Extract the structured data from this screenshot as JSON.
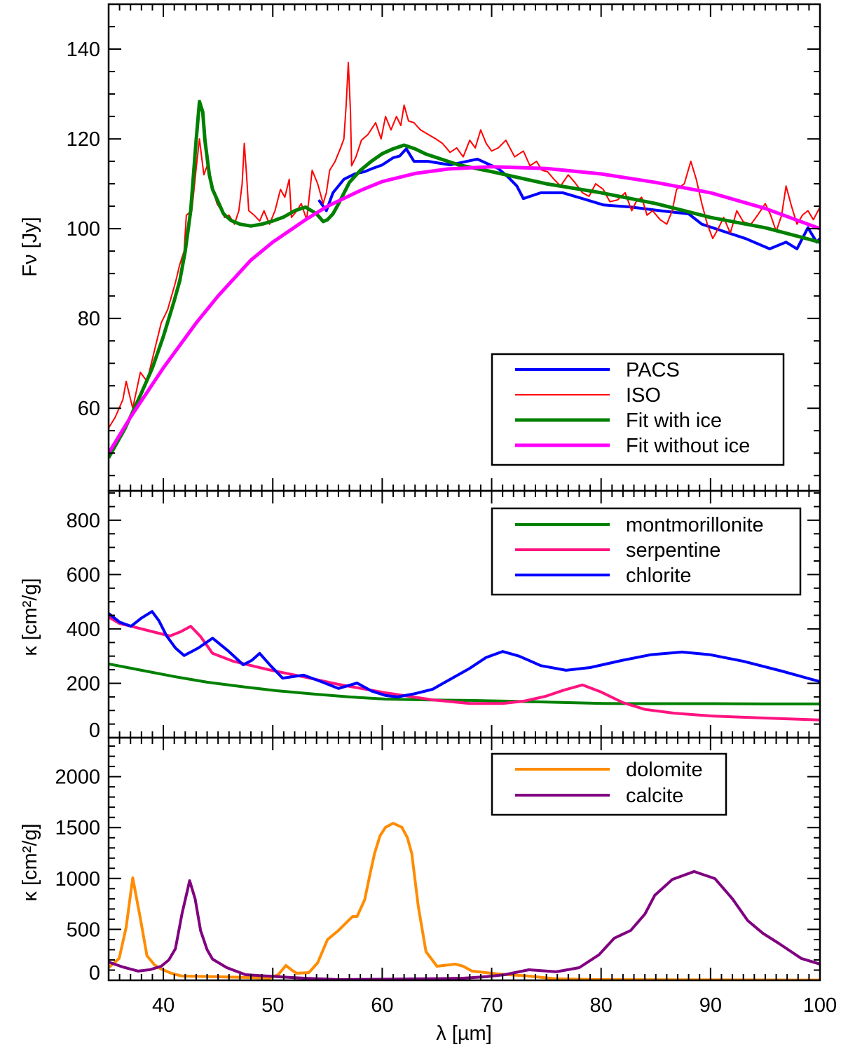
{
  "chart_data": [
    {
      "type": "line",
      "panel": "top",
      "title": "",
      "xlabel": "",
      "ylabel": "Fν [Jy]",
      "xlim": [
        35,
        100
      ],
      "ylim": [
        41.6,
        150
      ],
      "yticks": [
        60,
        80,
        100,
        120,
        140
      ],
      "ytick_labels": [
        "60",
        "80",
        "100",
        "120",
        "140"
      ],
      "yminor_step": 5,
      "grid": false,
      "legend_position": "bottom-right",
      "series": [
        {
          "name": "PACS",
          "color": "#0000ff",
          "width": 4,
          "x": [
            54.2,
            54.9,
            55.5,
            56.5,
            57.5,
            58.4,
            59.2,
            60,
            61,
            61.6,
            62.2,
            62.9,
            64.2,
            66.2,
            68.7,
            70.6,
            71.5,
            72.3,
            72.9,
            74.5,
            76.5,
            78.3,
            80.2,
            82.8,
            85.4,
            88,
            89.2,
            91.2,
            93.2,
            95.4,
            96.9,
            97.9,
            98.9,
            99.7,
            100
          ],
          "y": [
            106.4,
            104,
            108,
            111,
            112.2,
            112.7,
            113.5,
            114.2,
            115.8,
            116.2,
            117.8,
            115,
            115,
            114.2,
            115.5,
            113.4,
            111.5,
            109.5,
            106.7,
            108,
            108,
            106.7,
            105.3,
            104.8,
            104,
            103.3,
            101,
            99.4,
            97.8,
            95.5,
            97,
            95.5,
            100.2,
            97,
            97.8
          ]
        },
        {
          "name": "ISO",
          "color": "#ff0000",
          "width": 2,
          "x": [
            35,
            35.6,
            36.3,
            36.6,
            37.2,
            37.9,
            38.5,
            39.2,
            39.8,
            40.4,
            41.1,
            41.5,
            41.9,
            42.1,
            42.6,
            43,
            43.3,
            43.5,
            43.7,
            44,
            44.3,
            44.6,
            44.9,
            45.3,
            45.6,
            46,
            46.5,
            46.9,
            47.2,
            47.4,
            47.6,
            47.8,
            48.3,
            48.8,
            49.2,
            49.7,
            50.2,
            50.7,
            51.1,
            51.5,
            51.7,
            52.2,
            52.6,
            53.1,
            53.6,
            54.1,
            54.6,
            54.9,
            55.2,
            55.7,
            56.2,
            56.5,
            56.7,
            56.9,
            57.1,
            57.2,
            57.6,
            58.1,
            58.7,
            59.4,
            59.9,
            60.3,
            60.8,
            61.3,
            61.7,
            62,
            62.4,
            62.9,
            63.5,
            64.2,
            64.9,
            65.5,
            66.2,
            66.8,
            67.4,
            68,
            68.5,
            69,
            69.5,
            70,
            70.6,
            71.3,
            72.1,
            72.9,
            73.5,
            74.1,
            74.6,
            75.1,
            75.7,
            76.3,
            77,
            77.6,
            78.3,
            78.9,
            79.5,
            80.2,
            80.8,
            81.5,
            82.2,
            82.8,
            83.2,
            83.7,
            84.2,
            84.7,
            85.4,
            86,
            86.5,
            86.9,
            87.6,
            88.2,
            88.7,
            89.2,
            89.7,
            90.2,
            90.7,
            91.2,
            91.8,
            92.4,
            93,
            93.7,
            94.3,
            95,
            95.5,
            96,
            96.5,
            96.9,
            97.4,
            97.9,
            98.4,
            98.9,
            99.4,
            100
          ],
          "y": [
            55.6,
            58,
            61.9,
            66,
            60,
            68,
            66,
            73,
            79,
            82,
            88,
            92,
            95,
            103,
            104,
            113.4,
            120,
            116,
            112,
            114,
            110,
            108,
            105.6,
            104,
            102.5,
            103,
            101,
            104,
            110,
            119,
            112,
            104,
            103,
            101.7,
            104,
            101,
            104,
            108.75,
            107,
            111,
            102.5,
            104,
            105.6,
            102,
            113,
            110,
            105.6,
            108,
            113,
            115,
            118,
            120,
            127.5,
            137,
            126,
            114,
            116,
            119.7,
            121,
            123.6,
            120,
            125,
            122,
            125,
            123,
            127.5,
            124,
            123.6,
            122,
            121,
            120,
            119,
            117,
            118,
            116,
            119.7,
            118,
            122,
            119,
            117.3,
            118,
            119.7,
            116,
            117.3,
            114,
            115,
            113,
            112.7,
            111,
            109.5,
            112,
            110.3,
            108,
            107.2,
            110,
            108.75,
            106,
            106.4,
            108,
            104,
            106,
            107,
            103,
            104,
            102,
            101,
            104,
            108.75,
            110,
            115,
            111,
            105.6,
            101,
            97.8,
            100,
            102.5,
            99,
            104,
            101.5,
            101,
            103,
            105.6,
            103,
            99.4,
            103,
            109.5,
            105,
            101,
            103,
            104,
            102,
            104.8
          ]
        },
        {
          "name": "Fit with ice",
          "color": "#008000",
          "width": 5,
          "x": [
            35,
            36.5,
            38,
            39,
            40,
            41,
            41.5,
            42,
            42.5,
            43,
            43.3,
            43.6,
            43.8,
            44.2,
            44.5,
            45,
            45.5,
            46.2,
            47,
            48,
            49,
            50,
            51,
            52,
            53,
            54,
            54.6,
            55,
            55.5,
            56,
            57,
            58,
            59,
            60,
            61,
            62,
            63,
            64,
            65.5,
            67,
            70,
            75,
            80,
            85,
            90,
            95,
            100
          ],
          "y": [
            49,
            55.5,
            63.4,
            69,
            76,
            84,
            88.4,
            95,
            104,
            119.7,
            128.3,
            126,
            119.7,
            112,
            108.75,
            106,
            103.3,
            101.8,
            101,
            100.6,
            101,
            101.7,
            102.6,
            104,
            104.8,
            103.3,
            101.6,
            102,
            103.3,
            105.5,
            110.3,
            113,
            115,
            116.7,
            117.8,
            118.6,
            117.8,
            116.6,
            115.4,
            114.2,
            112.7,
            110,
            108,
            105.6,
            102.5,
            100.2,
            97
          ]
        },
        {
          "name": "Fit without ice",
          "color": "#ff00ff",
          "width": 5,
          "x": [
            35,
            37,
            40,
            43,
            45,
            48,
            50,
            53,
            55,
            58,
            60,
            63,
            66,
            70,
            75,
            80,
            85,
            90,
            95,
            100
          ],
          "y": [
            50,
            58,
            69,
            79,
            85,
            93,
            97,
            102,
            105,
            108.5,
            110.5,
            112.3,
            113.3,
            113.8,
            113.4,
            112.2,
            110.3,
            108,
            104.5,
            100
          ]
        }
      ]
    },
    {
      "type": "line",
      "panel": "middle",
      "title": "",
      "xlabel": "",
      "ylabel": "κ [cm²/g]",
      "xlim": [
        35,
        100
      ],
      "ylim": [
        0,
        908
      ],
      "yticks": [
        0,
        200,
        400,
        600,
        800
      ],
      "ytick_labels": [
        "0",
        "200",
        "400",
        "600",
        "800"
      ],
      "yminor_step": 50,
      "grid": false,
      "legend_position": "top-right",
      "series": [
        {
          "name": "montmorillonite",
          "color": "#008000",
          "width": 4,
          "x": [
            35,
            38,
            41.1,
            44,
            47.5,
            50.5,
            53.9,
            57,
            60.3,
            64,
            68,
            72,
            76,
            80.2,
            85,
            90,
            95,
            100
          ],
          "y": [
            271,
            248,
            224,
            204,
            186,
            172,
            160,
            150,
            142,
            139,
            137,
            134,
            130,
            126,
            125,
            125,
            124,
            124
          ]
        },
        {
          "name": "serpentine",
          "color": "#ff1480",
          "width": 4,
          "x": [
            35,
            36,
            37.05,
            38.8,
            40.6,
            41.6,
            42.5,
            43.4,
            44.5,
            46.4,
            49.6,
            52.8,
            56,
            60.3,
            64.6,
            68,
            71,
            73,
            74.9,
            76.6,
            78.3,
            80,
            82,
            84,
            86.7,
            90,
            93,
            96.5,
            100
          ],
          "y": [
            444,
            420,
            410,
            392,
            374,
            390,
            410,
            372,
            310,
            281,
            250,
            224,
            196,
            165,
            139,
            126,
            126,
            135,
            152,
            175,
            194,
            168,
            129,
            104,
            90,
            80,
            75,
            70,
            65
          ]
        },
        {
          "name": "chlorite",
          "color": "#0000ff",
          "width": 4,
          "x": [
            35,
            36,
            37.05,
            38,
            38.97,
            39.6,
            40.3,
            41.1,
            41.9,
            43.2,
            44.5,
            45.9,
            47.3,
            48.1,
            48.8,
            49.8,
            50.9,
            52.8,
            54.5,
            56,
            57.7,
            59,
            60.3,
            61.4,
            63,
            64.6,
            66,
            68,
            69.5,
            71,
            72.5,
            74.5,
            76.8,
            79,
            82,
            84.5,
            87.4,
            90,
            93,
            96.5,
            100
          ],
          "y": [
            457,
            425,
            410,
            440,
            464,
            430,
            374,
            330,
            302,
            330,
            366,
            320,
            268,
            285,
            310,
            265,
            219,
            230,
            205,
            181,
            201,
            172,
            155,
            150,
            162,
            178,
            210,
            255,
            295,
            317,
            300,
            265,
            248,
            258,
            285,
            305,
            315,
            305,
            281,
            245,
            206
          ]
        }
      ]
    },
    {
      "type": "line",
      "panel": "bottom",
      "title": "",
      "xlabel": "λ [µm]",
      "ylabel": "κ [cm²/g]",
      "xlim": [
        35,
        100
      ],
      "ylim": [
        0,
        2383
      ],
      "xticks": [
        40,
        50,
        60,
        70,
        80,
        90,
        100
      ],
      "xtick_labels": [
        "40",
        "50",
        "60",
        "70",
        "80",
        "90",
        "100"
      ],
      "xminor_step": 1,
      "yticks": [
        0,
        500,
        1000,
        1500,
        2000
      ],
      "ytick_labels": [
        "0",
        "500",
        "1000",
        "1500",
        "2000"
      ],
      "yminor_step": 100,
      "grid": false,
      "legend_position": "top-right",
      "series": [
        {
          "name": "dolomite",
          "color": "#ff8c00",
          "width": 4,
          "x": [
            35,
            35.96,
            36.6,
            37.2,
            37.9,
            38.5,
            39.2,
            39.8,
            40.7,
            41.7,
            43.5,
            45.4,
            47.5,
            49.7,
            50.5,
            51.2,
            51.8,
            52.2,
            53.3,
            54.1,
            55,
            56,
            56.9,
            57.3,
            57.7,
            58.4,
            58.9,
            59.3,
            59.8,
            60.3,
            61,
            61.8,
            62.3,
            62.7,
            63.3,
            64,
            65,
            66,
            66.7,
            67.4,
            68.2,
            70.6,
            73.4,
            75.9,
            80,
            90,
            100
          ],
          "y": [
            124,
            214,
            520,
            1006,
            606,
            241,
            150,
            110,
            70,
            41,
            38,
            34,
            28,
            21,
            55,
            145,
            95,
            69,
            76,
            172,
            400,
            489,
            586,
            627,
            627,
            792,
            1050,
            1247,
            1420,
            1502,
            1543,
            1502,
            1400,
            1247,
            723,
            282,
            138,
            150,
            159,
            138,
            90,
            62,
            41,
            14,
            7,
            4,
            3
          ]
        },
        {
          "name": "calcite",
          "color": "#800080",
          "width": 4,
          "x": [
            35,
            36.3,
            37.7,
            38.8,
            39.8,
            40.5,
            41.1,
            41.7,
            42.4,
            42.9,
            43.4,
            44,
            44.5,
            45.8,
            47.5,
            50.7,
            53,
            56,
            60,
            65,
            67.4,
            69.5,
            71.2,
            73.4,
            75.9,
            78,
            79.8,
            81.2,
            82.7,
            84,
            84.9,
            86.5,
            88.5,
            90.4,
            92,
            93.4,
            94.8,
            96.2,
            98.3,
            100
          ],
          "y": [
            179,
            130,
            90,
            105,
            138,
            200,
            310,
            650,
            978,
            800,
            489,
            300,
            207,
            124,
            55,
            34,
            20,
            7,
            10,
            15,
            21,
            35,
            55,
            103,
            83,
            124,
            250,
            413,
            489,
            650,
            834,
            990,
            1068,
            999,
            800,
            586,
            460,
            365,
            214,
            159
          ]
        }
      ]
    }
  ]
}
